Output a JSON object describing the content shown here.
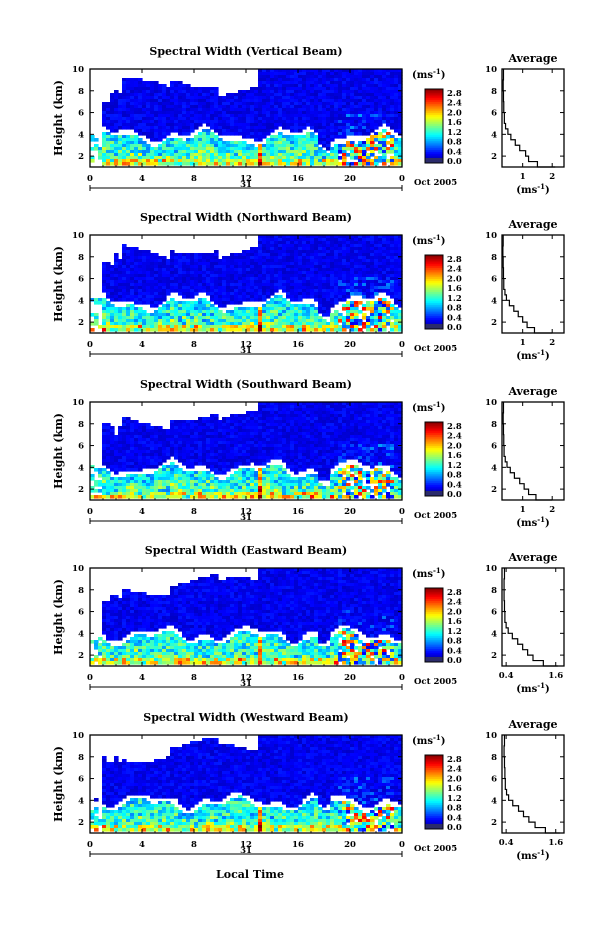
{
  "figure": {
    "xlabel": "Local Time",
    "ylabel": "Height (km)",
    "date_label": "Oct 2005",
    "day_label": "31",
    "colorbar_unit": "(ms",
    "colorbar_unit_exp": "-1",
    "colorbar_unit_close": ")",
    "colorbar_ticks": [
      "0.0",
      "0.4",
      "0.8",
      "1.2",
      "1.6",
      "2.0",
      "2.4",
      "2.8"
    ],
    "profile_title": "Average",
    "profile_xlabel": "(ms",
    "profile_xlabel_exp": "-1",
    "profile_xlabel_close": ")"
  },
  "chart_data": [
    {
      "type": "heatmap",
      "title": "Spectral Width (Vertical Beam)",
      "xlabel": "Local Time",
      "ylabel": "Height (km)",
      "xlim": [
        0,
        24
      ],
      "xticks": [
        "0",
        "4",
        "8",
        "12",
        "16",
        "20",
        "0"
      ],
      "ylim": [
        1,
        10
      ],
      "yticks": [
        "2",
        "4",
        "6",
        "8",
        "10"
      ],
      "colorbar": {
        "range": [
          0.0,
          2.8
        ],
        "unit": "ms-1"
      },
      "profile": {
        "title": "Average",
        "xlim": [
          0.3,
          2.4
        ],
        "xticks": [
          1,
          2
        ],
        "xtick_labels": [
          "1",
          "2"
        ],
        "height": [
          1.0,
          1.5,
          2.0,
          2.5,
          3.0,
          3.5,
          4.0,
          4.5,
          5.0,
          6.0,
          7.0,
          8.0,
          9.0,
          10.0
        ],
        "width": [
          2.1,
          1.5,
          1.2,
          1.1,
          0.9,
          0.75,
          0.6,
          0.5,
          0.42,
          0.38,
          0.36,
          0.35,
          0.34,
          0.35
        ]
      }
    },
    {
      "type": "heatmap",
      "title": "Spectral Width (Northward Beam)",
      "xlabel": "Local Time",
      "ylabel": "Height (km)",
      "xlim": [
        0,
        24
      ],
      "xticks": [
        "0",
        "4",
        "8",
        "12",
        "16",
        "20",
        "0"
      ],
      "ylim": [
        1,
        10
      ],
      "yticks": [
        "2",
        "4",
        "6",
        "8",
        "10"
      ],
      "colorbar": {
        "range": [
          0.0,
          2.8
        ],
        "unit": "ms-1"
      },
      "profile": {
        "title": "Average",
        "xlim": [
          0.3,
          2.4
        ],
        "xticks": [
          1,
          2
        ],
        "xtick_labels": [
          "1",
          "2"
        ],
        "height": [
          1.0,
          1.5,
          2.0,
          2.5,
          3.0,
          3.5,
          4.0,
          4.5,
          5.0,
          6.0,
          7.0,
          8.0,
          9.0,
          10.0
        ],
        "width": [
          2.0,
          1.4,
          1.15,
          1.0,
          0.85,
          0.7,
          0.55,
          0.45,
          0.4,
          0.36,
          0.35,
          0.34,
          0.33,
          0.34
        ]
      }
    },
    {
      "type": "heatmap",
      "title": "Spectral Width (Southward Beam)",
      "xlabel": "Local Time",
      "ylabel": "Height (km)",
      "xlim": [
        0,
        24
      ],
      "xticks": [
        "0",
        "4",
        "8",
        "12",
        "16",
        "20",
        "0"
      ],
      "ylim": [
        1,
        10
      ],
      "yticks": [
        "2",
        "4",
        "6",
        "8",
        "10"
      ],
      "colorbar": {
        "range": [
          0.0,
          2.8
        ],
        "unit": "ms-1"
      },
      "profile": {
        "title": "Average",
        "xlim": [
          0.3,
          2.4
        ],
        "xticks": [
          1,
          2
        ],
        "xtick_labels": [
          "1",
          "2"
        ],
        "height": [
          1.0,
          1.5,
          2.0,
          2.5,
          3.0,
          3.5,
          4.0,
          4.5,
          5.0,
          6.0,
          7.0,
          8.0,
          9.0,
          10.0
        ],
        "width": [
          2.0,
          1.45,
          1.2,
          1.05,
          0.9,
          0.72,
          0.58,
          0.47,
          0.41,
          0.37,
          0.36,
          0.35,
          0.34,
          0.35
        ]
      }
    },
    {
      "type": "heatmap",
      "title": "Spectral Width (Eastward Beam)",
      "xlabel": "Local Time",
      "ylabel": "Height (km)",
      "xlim": [
        0,
        24
      ],
      "xticks": [
        "0",
        "4",
        "8",
        "12",
        "16",
        "20",
        "0"
      ],
      "ylim": [
        1,
        10
      ],
      "yticks": [
        "2",
        "4",
        "6",
        "8",
        "10"
      ],
      "colorbar": {
        "range": [
          0.0,
          2.8
        ],
        "unit": "ms-1"
      },
      "profile": {
        "title": "Average",
        "xlim": [
          0.3,
          1.8
        ],
        "xticks": [
          0.4,
          1.6
        ],
        "xtick_labels": [
          "0.4",
          "1.6"
        ],
        "height": [
          1.0,
          1.5,
          2.0,
          2.5,
          3.0,
          3.5,
          4.0,
          4.5,
          5.0,
          6.0,
          7.0,
          8.0,
          9.0,
          10.0
        ],
        "width": [
          1.65,
          1.3,
          1.05,
          0.92,
          0.8,
          0.68,
          0.55,
          0.45,
          0.4,
          0.37,
          0.36,
          0.35,
          0.35,
          0.36
        ]
      }
    },
    {
      "type": "heatmap",
      "title": "Spectral Width (Westward Beam)",
      "xlabel": "Local Time",
      "ylabel": "Height (km)",
      "xlim": [
        0,
        24
      ],
      "xticks": [
        "0",
        "4",
        "8",
        "12",
        "16",
        "20",
        "0"
      ],
      "ylim": [
        1,
        10
      ],
      "yticks": [
        "2",
        "4",
        "6",
        "8",
        "10"
      ],
      "colorbar": {
        "range": [
          0.0,
          2.8
        ],
        "unit": "ms-1"
      },
      "profile": {
        "title": "Average",
        "xlim": [
          0.3,
          1.8
        ],
        "xticks": [
          0.4,
          1.6
        ],
        "xtick_labels": [
          "0.4",
          "1.6"
        ],
        "height": [
          1.0,
          1.5,
          2.0,
          2.5,
          3.0,
          3.5,
          4.0,
          4.5,
          5.0,
          6.0,
          7.0,
          8.0,
          9.0,
          10.0
        ],
        "width": [
          1.7,
          1.35,
          1.1,
          0.95,
          0.82,
          0.7,
          0.56,
          0.46,
          0.41,
          0.38,
          0.37,
          0.36,
          0.35,
          0.36
        ]
      }
    }
  ]
}
